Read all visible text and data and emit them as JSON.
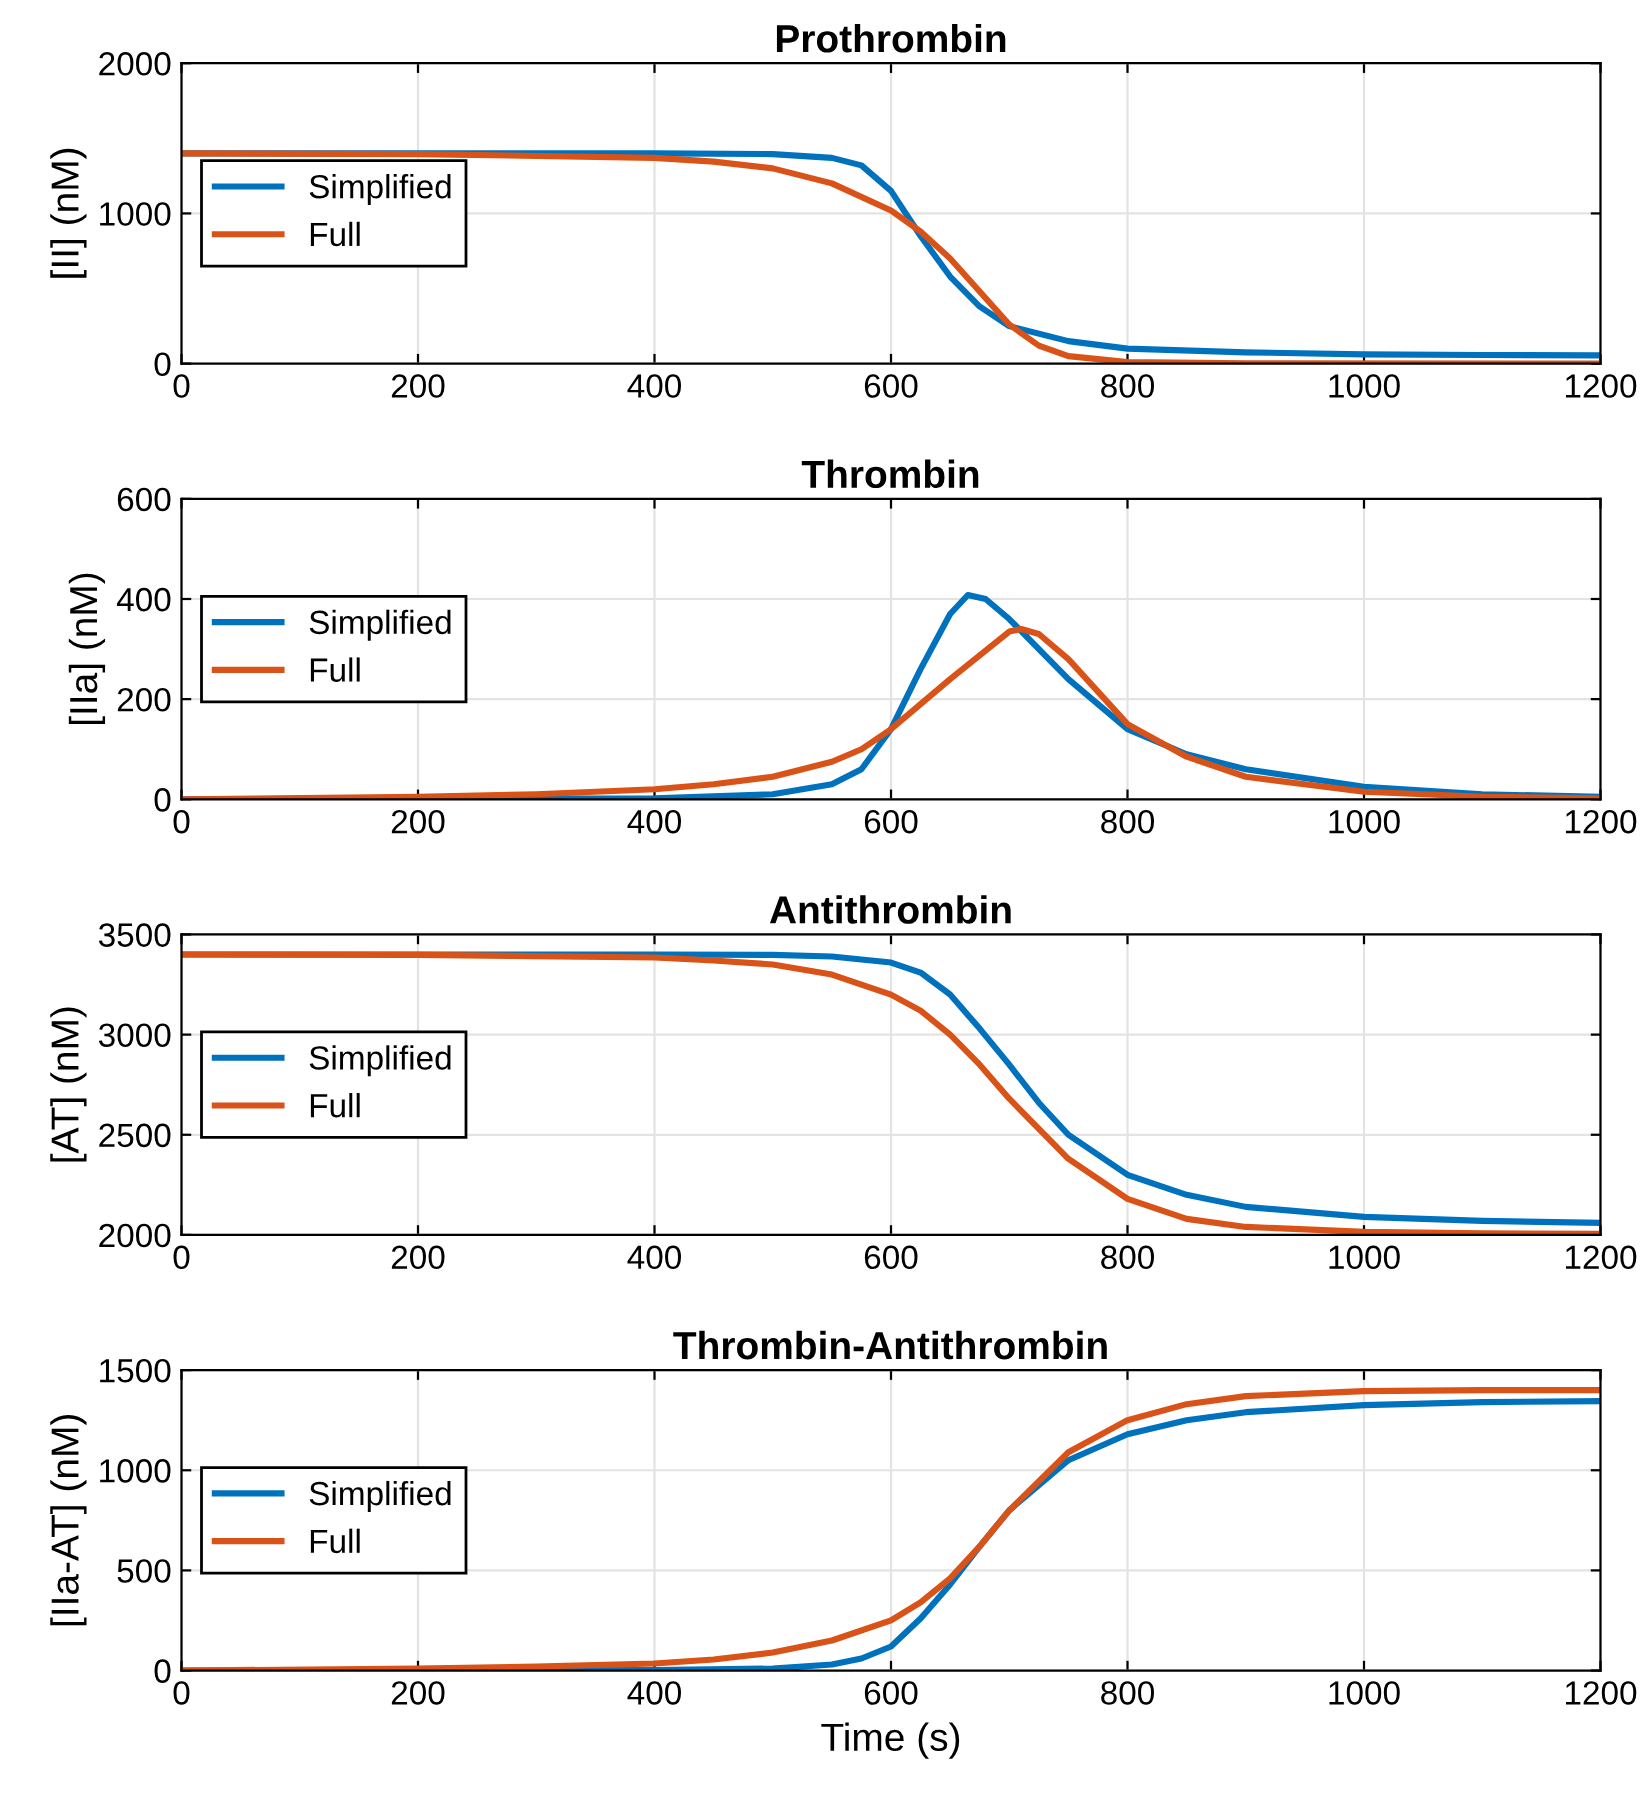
{
  "chart_data": [
    {
      "type": "line",
      "title": "Prothrombin",
      "ylabel": "[II] (nM)",
      "xlim": [
        0,
        1200
      ],
      "xticks": [
        0,
        200,
        400,
        600,
        800,
        1000,
        1200
      ],
      "ylim": [
        0,
        2000
      ],
      "yticks": [
        0,
        1000,
        2000
      ],
      "grid": true,
      "legend": "left",
      "series": [
        {
          "name": "Simplified",
          "color": "#0072bd",
          "x": [
            0,
            200,
            400,
            500,
            550,
            575,
            600,
            625,
            650,
            675,
            700,
            750,
            800,
            900,
            1000,
            1100,
            1200
          ],
          "values": [
            1400,
            1400,
            1400,
            1395,
            1370,
            1320,
            1150,
            850,
            580,
            380,
            250,
            150,
            100,
            75,
            62,
            58,
            55
          ]
        },
        {
          "name": "Full",
          "color": "#d95319",
          "x": [
            0,
            200,
            400,
            450,
            500,
            550,
            600,
            625,
            650,
            675,
            700,
            725,
            750,
            800,
            900,
            1200
          ],
          "values": [
            1400,
            1395,
            1370,
            1345,
            1300,
            1200,
            1020,
            880,
            700,
            480,
            260,
            120,
            50,
            10,
            2,
            0
          ]
        }
      ]
    },
    {
      "type": "line",
      "title": "Thrombin",
      "ylabel": "[IIa] (nM)",
      "xlim": [
        0,
        1200
      ],
      "xticks": [
        0,
        200,
        400,
        600,
        800,
        1000,
        1200
      ],
      "ylim": [
        0,
        600
      ],
      "yticks": [
        0,
        200,
        400,
        600
      ],
      "grid": true,
      "legend": "left",
      "series": [
        {
          "name": "Simplified",
          "color": "#0072bd",
          "x": [
            0,
            400,
            500,
            550,
            575,
            600,
            625,
            650,
            665,
            680,
            700,
            750,
            800,
            850,
            900,
            1000,
            1100,
            1200
          ],
          "values": [
            0,
            2,
            10,
            30,
            60,
            140,
            260,
            370,
            408,
            400,
            360,
            240,
            140,
            90,
            60,
            25,
            10,
            5
          ]
        },
        {
          "name": "Full",
          "color": "#d95319",
          "x": [
            0,
            200,
            300,
            400,
            450,
            500,
            550,
            575,
            600,
            650,
            700,
            710,
            725,
            750,
            800,
            850,
            900,
            1000,
            1100,
            1200
          ],
          "values": [
            0,
            5,
            10,
            20,
            30,
            45,
            75,
            100,
            140,
            240,
            335,
            340,
            330,
            280,
            150,
            85,
            45,
            15,
            5,
            2
          ]
        }
      ]
    },
    {
      "type": "line",
      "title": "Antithrombin",
      "ylabel": "[AT] (nM)",
      "xlim": [
        0,
        1200
      ],
      "xticks": [
        0,
        200,
        400,
        600,
        800,
        1000,
        1200
      ],
      "ylim": [
        2000,
        3500
      ],
      "yticks": [
        2000,
        2500,
        3000,
        3500
      ],
      "grid": true,
      "legend": "left",
      "series": [
        {
          "name": "Simplified",
          "color": "#0072bd",
          "x": [
            0,
            400,
            500,
            550,
            600,
            625,
            650,
            675,
            700,
            725,
            750,
            800,
            850,
            900,
            1000,
            1100,
            1200
          ],
          "values": [
            3400,
            3400,
            3398,
            3390,
            3360,
            3310,
            3200,
            3030,
            2850,
            2660,
            2500,
            2300,
            2200,
            2140,
            2090,
            2070,
            2060
          ]
        },
        {
          "name": "Full",
          "color": "#d95319",
          "x": [
            0,
            200,
            400,
            450,
            500,
            550,
            600,
            625,
            650,
            675,
            700,
            750,
            800,
            850,
            900,
            1000,
            1100,
            1200
          ],
          "values": [
            3400,
            3398,
            3385,
            3370,
            3350,
            3300,
            3200,
            3120,
            3000,
            2850,
            2680,
            2380,
            2180,
            2080,
            2040,
            2015,
            2008,
            2005
          ]
        }
      ]
    },
    {
      "type": "line",
      "title": "Thrombin-Antithrombin",
      "ylabel": "[IIa-AT] (nM)",
      "xlabel": "Time (s)",
      "xlim": [
        0,
        1200
      ],
      "xticks": [
        0,
        200,
        400,
        600,
        800,
        1000,
        1200
      ],
      "ylim": [
        0,
        1500
      ],
      "yticks": [
        0,
        500,
        1000,
        1500
      ],
      "grid": true,
      "legend": "left",
      "series": [
        {
          "name": "Simplified",
          "color": "#0072bd",
          "x": [
            0,
            400,
            500,
            550,
            575,
            600,
            625,
            650,
            675,
            700,
            750,
            800,
            850,
            900,
            1000,
            1100,
            1200
          ],
          "values": [
            0,
            2,
            10,
            30,
            60,
            120,
            260,
            430,
            620,
            800,
            1050,
            1180,
            1250,
            1290,
            1325,
            1340,
            1345
          ]
        },
        {
          "name": "Full",
          "color": "#d95319",
          "x": [
            0,
            200,
            300,
            400,
            450,
            500,
            550,
            600,
            625,
            650,
            675,
            700,
            750,
            800,
            850,
            900,
            1000,
            1100,
            1200
          ],
          "values": [
            0,
            10,
            20,
            35,
            55,
            90,
            150,
            250,
            340,
            460,
            620,
            800,
            1090,
            1250,
            1330,
            1370,
            1395,
            1400,
            1400
          ]
        }
      ]
    }
  ]
}
